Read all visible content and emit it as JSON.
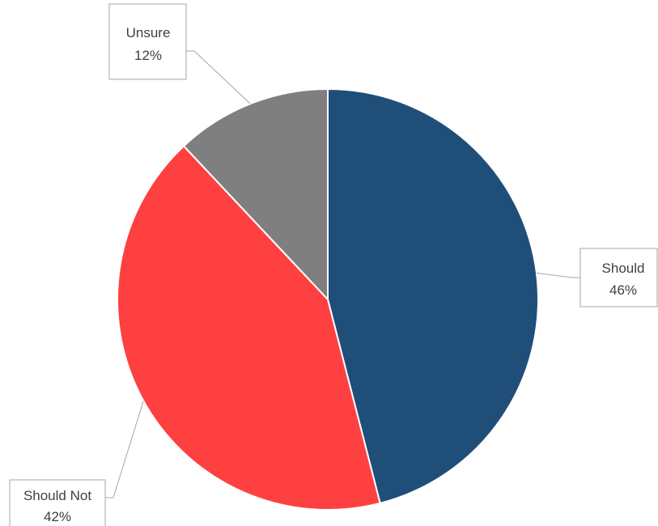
{
  "chart_data": {
    "type": "pie",
    "title": "",
    "start_angle_deg": 0,
    "direction": "clockwise",
    "slices": [
      {
        "name": "Should",
        "value": 46,
        "label": "46%",
        "color": "#1f4e79"
      },
      {
        "name": "Should Not",
        "value": 42,
        "label": "42%",
        "color": "#ff4040"
      },
      {
        "name": "Unsure",
        "value": 12,
        "label": "12%",
        "color": "#7f7f7f"
      }
    ],
    "legend": "none",
    "data_labels": "outside-callout"
  }
}
